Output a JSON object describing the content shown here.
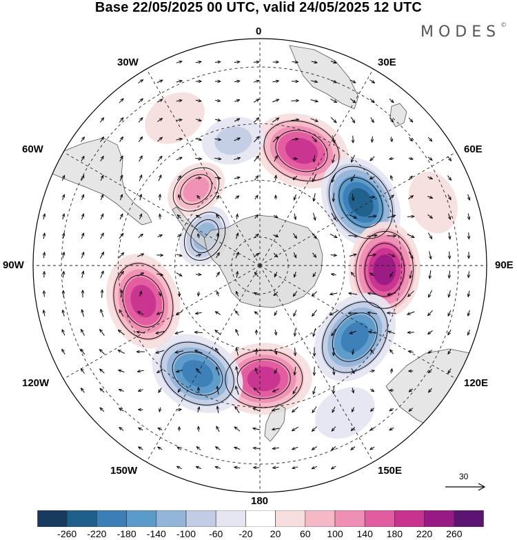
{
  "title": "Base 22/05/2025 00 UTC, valid 24/05/2025 12 UTC",
  "brand": "MODES",
  "brand_mark": "©",
  "longitude_labels": {
    "lon_0": "0",
    "lon_30e": "30E",
    "lon_60e": "60E",
    "lon_90e": "90E",
    "lon_120e": "120E",
    "lon_150e": "150E",
    "lon_180": "180",
    "lon_150w": "150W",
    "lon_120w": "120W",
    "lon_90w": "90W",
    "lon_60w": "60W",
    "lon_30w": "30W"
  },
  "reference_vector": {
    "label": "30"
  },
  "colorbar": {
    "colors": [
      "#173a5e",
      "#1f5f8b",
      "#3b7fb6",
      "#5b9bca",
      "#93b5d8",
      "#c2cce4",
      "#e6e6f2",
      "#ffffff",
      "#f7dede",
      "#f4b8c6",
      "#ef8fb4",
      "#e25ca0",
      "#c7338f",
      "#9a1a85",
      "#5c1472"
    ],
    "labels": [
      "-260",
      "-220",
      "-180",
      "-140",
      "-100",
      "-60",
      "-20",
      "20",
      "60",
      "100",
      "140",
      "180",
      "220",
      "260"
    ]
  },
  "palette": {
    "land": "#d8d8d8",
    "coast": "#555555",
    "grid": "#222222"
  },
  "anomaly_centers": [
    {
      "lon": 20,
      "lat": -47,
      "value": 200
    },
    {
      "lon": 58,
      "lat": -48,
      "value": -240
    },
    {
      "lon": 92,
      "lat": -46,
      "value": 260
    },
    {
      "lon": 127,
      "lat": -48,
      "value": -220
    },
    {
      "lon": 178,
      "lat": -50,
      "value": 200
    },
    {
      "lon": -150,
      "lat": -46,
      "value": -200
    },
    {
      "lon": -107,
      "lat": -47,
      "value": 220
    },
    {
      "lon": -62,
      "lat": -68,
      "value": -120
    },
    {
      "lon": -40,
      "lat": -55,
      "value": 120
    },
    {
      "lon": -12,
      "lat": -45,
      "value": -80
    },
    {
      "lon": 70,
      "lat": -25,
      "value": 40
    },
    {
      "lon": 150,
      "lat": -30,
      "value": -40
    },
    {
      "lon": -30,
      "lat": -30,
      "value": 40
    },
    {
      "lon": -100,
      "lat": -25,
      "value": 20
    }
  ]
}
